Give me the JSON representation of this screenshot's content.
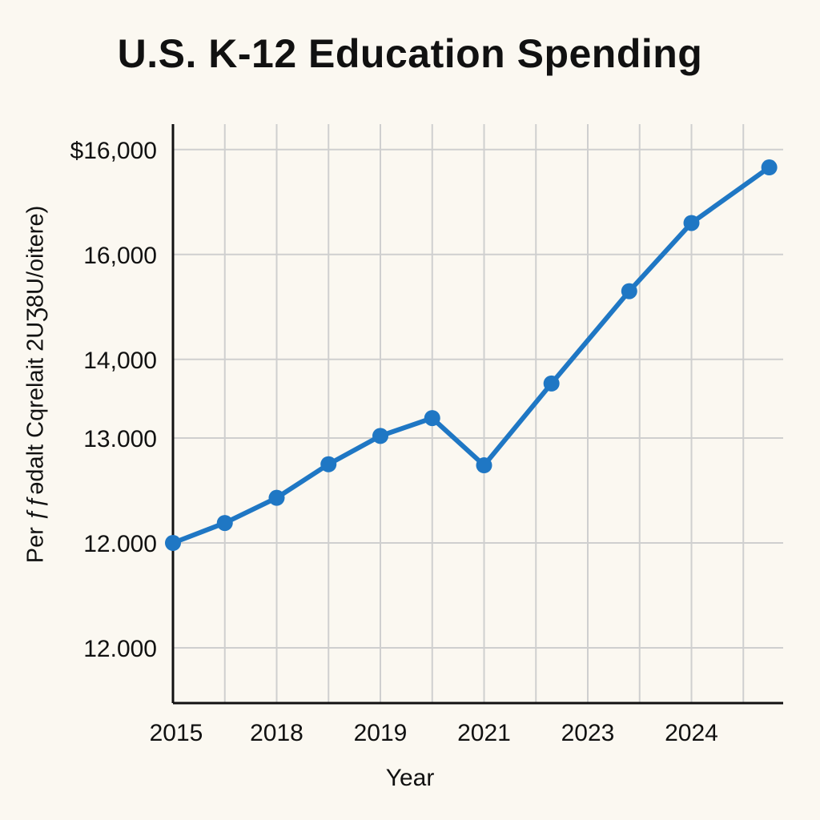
{
  "chart_data": {
    "type": "line",
    "title": "U.S. K-12 Education Spending",
    "xlabel": "Year",
    "ylabel": "Per ƒƒədalt Cqrelait 2UƷ8U/oitere)",
    "x_tick_labels": [
      "2015",
      "2018",
      "2019",
      "2021",
      "2023",
      "2024"
    ],
    "y_tick_labels": [
      "$16,000",
      "16,000",
      "14,000",
      "13.000",
      "12.000",
      "12.000"
    ],
    "grid": true,
    "color": "#1f77c4",
    "series": [
      {
        "points": [
          {
            "x": 0,
            "y": 0
          },
          {
            "x": 0.5,
            "y": 0.19
          },
          {
            "x": 1,
            "y": 0.43
          },
          {
            "x": 1.5,
            "y": 0.75
          },
          {
            "x": 2,
            "y": 1.02
          },
          {
            "x": 2.5,
            "y": 1.19
          },
          {
            "x": 3,
            "y": 0.74
          },
          {
            "x": 3.65,
            "y": 1.52
          },
          {
            "x": 4.4,
            "y": 2.4
          },
          {
            "x": 5,
            "y": 3.05
          },
          {
            "x": 5.75,
            "y": 3.58
          }
        ]
      }
    ]
  }
}
